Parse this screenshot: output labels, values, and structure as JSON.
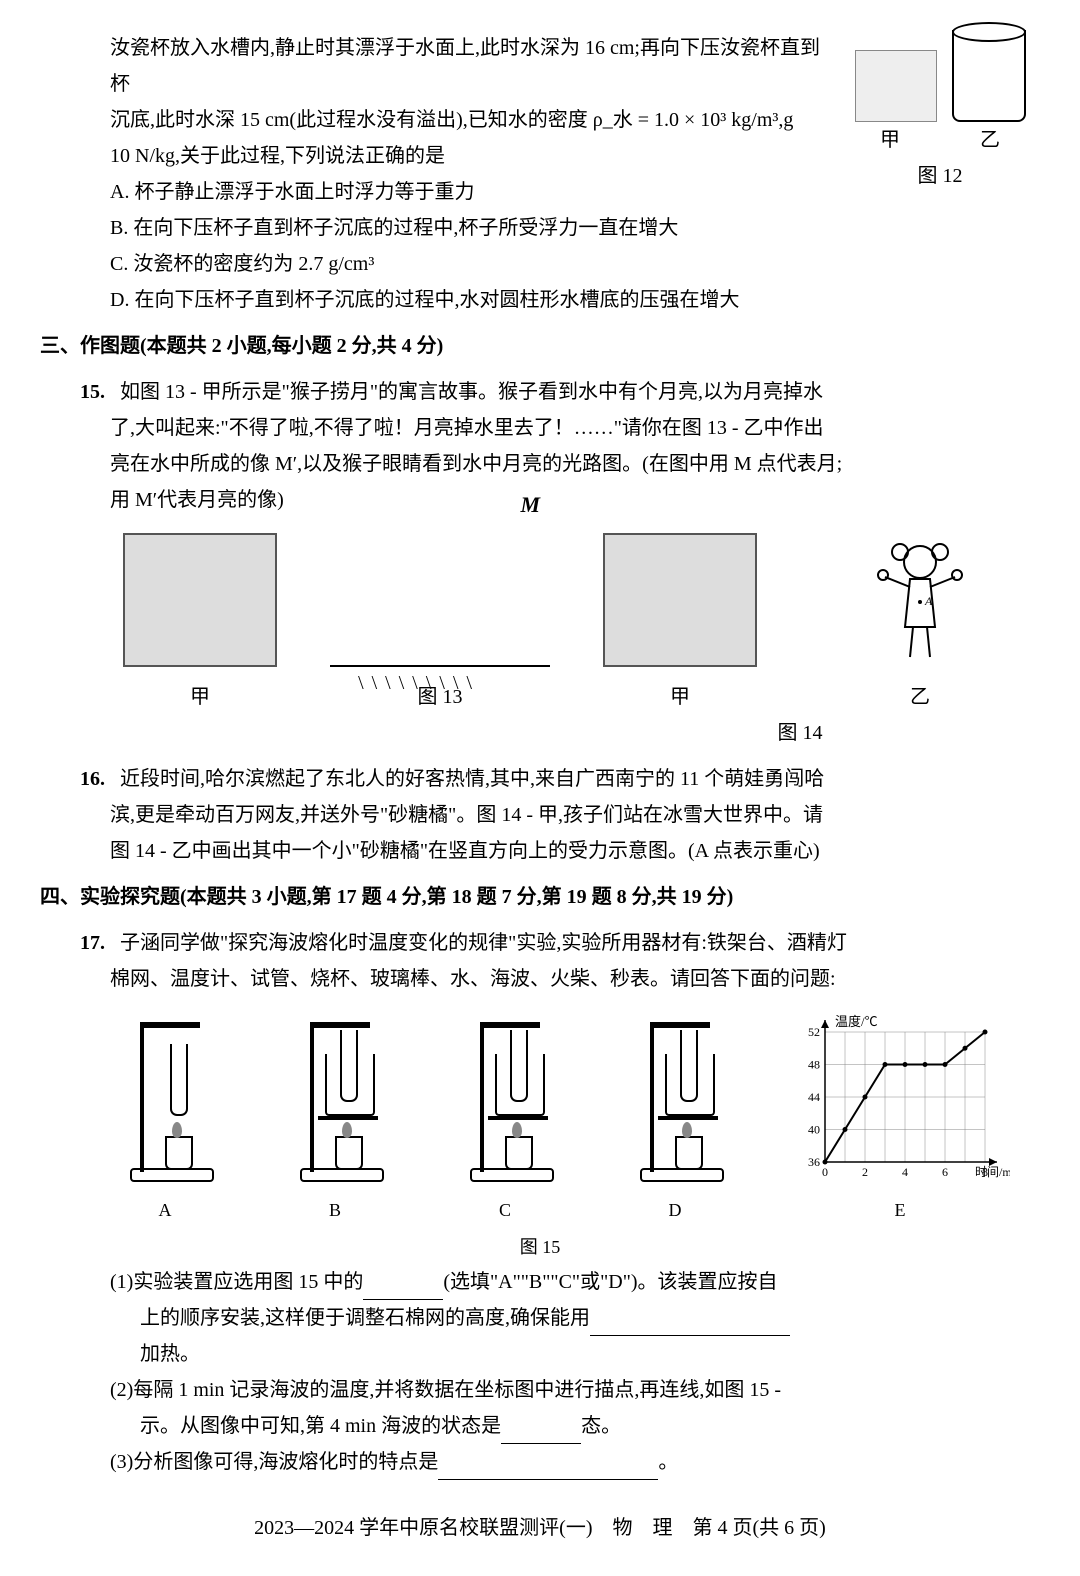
{
  "q14": {
    "stem_l1": "汝瓷杯放入水槽内,静止时其漂浮于水面上,此时水深为 16 cm;再向下压汝瓷杯直到杯",
    "stem_l2": "沉底,此时水深 15 cm(此过程水没有溢出),已知水的密度 ρ_水 = 1.0 × 10³ kg/m³,g",
    "stem_l3": "10 N/kg,关于此过程,下列说法正确的是",
    "optA": "A. 杯子静止漂浮于水面上时浮力等于重力",
    "optB": "B. 在向下压杯子直到杯子沉底的过程中,杯子所受浮力一直在增大",
    "optC": "C. 汝瓷杯的密度约为 2.7 g/cm³",
    "optD": "D. 在向下压杯子直到杯子沉底的过程中,水对圆柱形水槽底的压强在增大",
    "fig_sub_left": "甲",
    "fig_sub_right": "乙",
    "fig_label": "图 12"
  },
  "section3": {
    "title": "三、作图题(本题共 2 小题,每小题 2 分,共 4 分)"
  },
  "q15": {
    "num": "15.",
    "l1": "如图 13 - 甲所示是\"猴子捞月\"的寓言故事。猴子看到水中有个月亮,以为月亮掉水",
    "l2": "了,大叫起来:\"不得了啦,不得了啦！月亮掉水里去了！……\"请你在图 13 - 乙中作出",
    "l3": "亮在水中所成的像 M′,以及猴子眼睛看到水中月亮的光路图。(在图中用 M 点代表月;",
    "l4": "用 M′代表月亮的像)",
    "m_label": "M",
    "sub_left": "甲",
    "fig_label": "图 13",
    "fig14_sub_left": "甲",
    "fig14_sub_right": "乙",
    "fig14_label": "图 14"
  },
  "q16": {
    "num": "16.",
    "l1": "近段时间,哈尔滨燃起了东北人的好客热情,其中,来自广西南宁的 11 个萌娃勇闯哈",
    "l2": "滨,更是牵动百万网友,并送外号\"砂糖橘\"。图 14 - 甲,孩子们站在冰雪大世界中。请",
    "l3": "图 14 - 乙中画出其中一个小\"砂糖橘\"在竖直方向上的受力示意图。(A 点表示重心)"
  },
  "section4": {
    "title": "四、实验探究题(本题共 3 小题,第 17 题 4 分,第 18 题 7 分,第 19 题 8 分,共 19 分)"
  },
  "q17": {
    "num": "17.",
    "l1": "子涵同学做\"探究海波熔化时温度变化的规律\"实验,实验所用器材有:铁架台、酒精灯",
    "l2": "棉网、温度计、试管、烧杯、玻璃棒、水、海波、火柴、秒表。请回答下面的问题:",
    "labels": {
      "A": "A",
      "B": "B",
      "C": "C",
      "D": "D",
      "E": "E"
    },
    "fig_label": "图 15",
    "chart": {
      "ylabel": "温度/℃",
      "xlabel": "时间/m",
      "yticks": [
        "36",
        "40",
        "44",
        "48",
        "52"
      ],
      "xticks": [
        "0",
        "2",
        "4",
        "6",
        "8"
      ],
      "points": [
        [
          0,
          36
        ],
        [
          1,
          40
        ],
        [
          2,
          44
        ],
        [
          3,
          48
        ],
        [
          4,
          48
        ],
        [
          5,
          48
        ],
        [
          6,
          48
        ],
        [
          7,
          50
        ],
        [
          8,
          52
        ]
      ],
      "grid_color": "#888",
      "line_color": "#000"
    },
    "sub1_a": "(1)实验装置应选用图 15 中的",
    "sub1_b": "(选填\"A\"\"B\"\"C\"或\"D\")。该装置应按自",
    "sub1_c": "上的顺序安装,这样便于调整石棉网的高度,确保能用",
    "sub1_d": "加热。",
    "sub2_a": "(2)每隔 1 min 记录海波的温度,并将数据在坐标图中进行描点,再连线,如图 15 -",
    "sub2_b": "示。从图像中可知,第 4 min 海波的状态是",
    "sub2_c": "态。",
    "sub3_a": "(3)分析图像可得,海波熔化时的特点是",
    "sub3_b": "。"
  },
  "footer": "2023—2024 学年中原名校联盟测评(一)　物　理　第 4 页(共 6 页)"
}
